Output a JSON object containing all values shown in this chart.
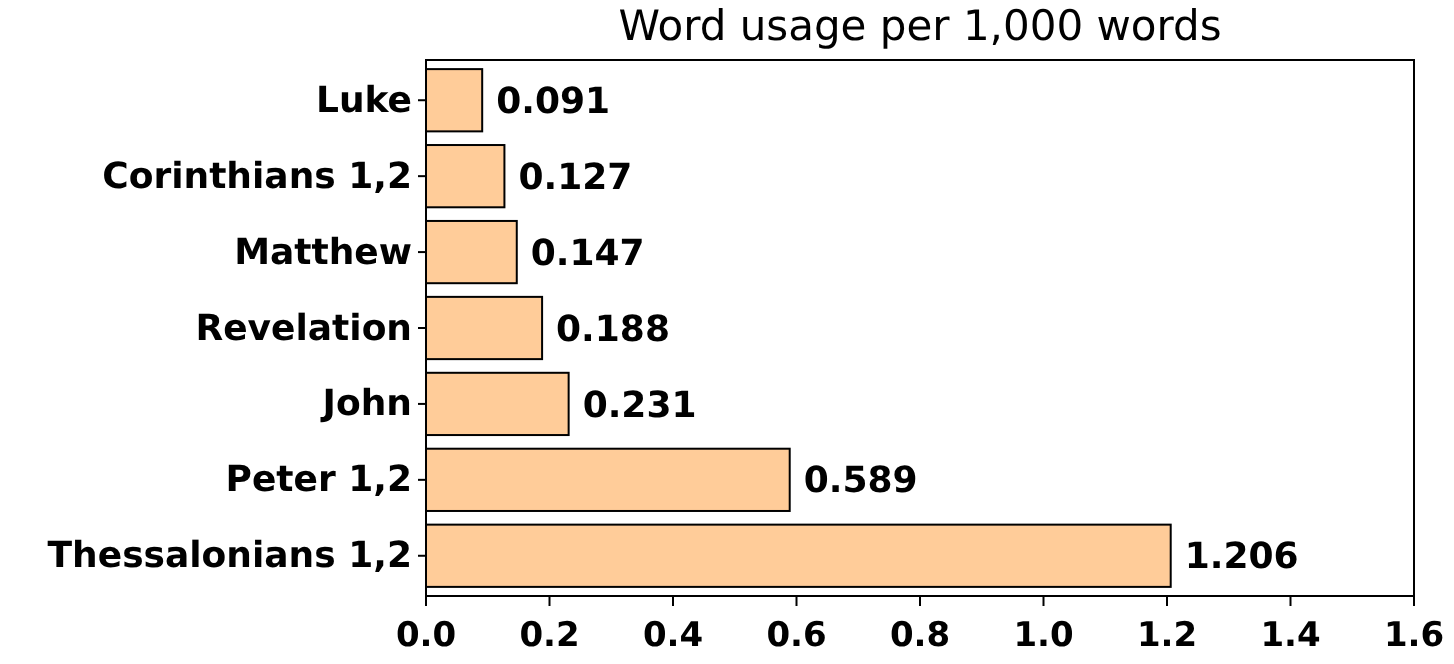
{
  "chart_data": {
    "type": "bar",
    "orientation": "horizontal",
    "title": "Word usage per 1,000 words",
    "categories": [
      "Luke",
      "Corinthians 1,2",
      "Matthew",
      "Revelation",
      "John",
      "Peter 1,2",
      "Thessalonians 1,2"
    ],
    "values": [
      0.091,
      0.127,
      0.147,
      0.188,
      0.231,
      0.589,
      1.206
    ],
    "color": "#ffcc99",
    "data_labels": true,
    "xlim": [
      0,
      1.6
    ],
    "xticks": [
      {
        "value": 0,
        "label": "0.0"
      },
      {
        "value": 0.2,
        "label": "0.2"
      },
      {
        "value": 0.4,
        "label": "0.4"
      },
      {
        "value": 0.6,
        "label": "0.6"
      },
      {
        "value": 0.8,
        "label": "0.8"
      },
      {
        "value": 1.0,
        "label": "1.0"
      },
      {
        "value": 1.2,
        "label": "1.2"
      },
      {
        "value": 1.4,
        "label": "1.4"
      },
      {
        "value": 1.6,
        "label": "1.6"
      }
    ],
    "grid": false
  }
}
